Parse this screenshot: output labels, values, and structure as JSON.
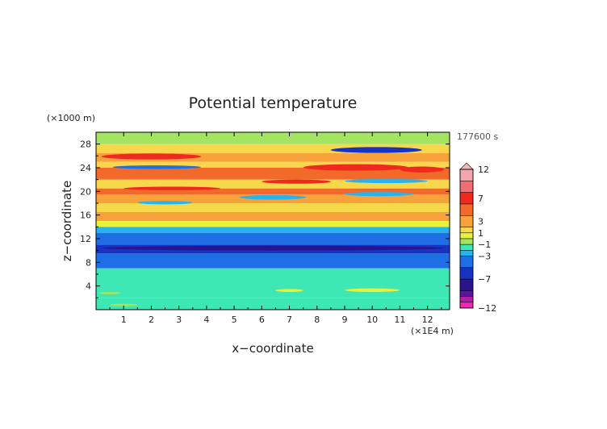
{
  "chart_data": {
    "type": "heatmap",
    "title": "Potential temperature",
    "xlabel": "x−coordinate",
    "ylabel": "z−coordinate",
    "x_unit": "(×1E4 m)",
    "y_unit": "(×1000 m)",
    "time_label": "177600 s",
    "xlim": [
      0,
      12.8
    ],
    "ylim": [
      0,
      30
    ],
    "x_ticks": [
      "1",
      "2",
      "3",
      "4",
      "5",
      "6",
      "7",
      "8",
      "9",
      "10",
      "11",
      "12"
    ],
    "y_ticks": [
      "4",
      "8",
      "12",
      "16",
      "20",
      "24",
      "28"
    ],
    "colorbar_labels": [
      "12",
      "7",
      "3",
      "1",
      "−1",
      "−3",
      "−7",
      "−12"
    ],
    "colorbar_levels": [
      {
        "lo": 10,
        "hi": 12,
        "color": "#f4a6ac"
      },
      {
        "lo": 8,
        "hi": 10,
        "color": "#f06e72"
      },
      {
        "lo": 6,
        "hi": 8,
        "color": "#ee2a1f"
      },
      {
        "lo": 4,
        "hi": 6,
        "color": "#f26a2a"
      },
      {
        "lo": 2,
        "hi": 4,
        "color": "#f7a23a"
      },
      {
        "lo": 1,
        "hi": 2,
        "color": "#f7d84a"
      },
      {
        "lo": 0,
        "hi": 1,
        "color": "#e7f23c"
      },
      {
        "lo": -1,
        "hi": 0,
        "color": "#a4e462"
      },
      {
        "lo": -2,
        "hi": -1,
        "color": "#3ee8b4"
      },
      {
        "lo": -3,
        "hi": -2,
        "color": "#27b4ee"
      },
      {
        "lo": -5,
        "hi": -3,
        "color": "#1e6ee6"
      },
      {
        "lo": -7,
        "hi": -5,
        "color": "#1832c2"
      },
      {
        "lo": -9,
        "hi": -7,
        "color": "#2a148e"
      },
      {
        "lo": -10,
        "hi": -9,
        "color": "#5a14a0"
      },
      {
        "lo": -11,
        "hi": -10,
        "color": "#b21ea4"
      },
      {
        "lo": -12,
        "hi": -11,
        "color": "#ef2ab2"
      }
    ],
    "layers": [
      {
        "z": [
          0,
          2
        ],
        "value": -1.5,
        "color": "#3ee8b4"
      },
      {
        "z": [
          2,
          7
        ],
        "value": -1.5,
        "color": "#3ee8b4"
      },
      {
        "z": [
          7,
          9.5
        ],
        "value": -4,
        "color": "#1e6ee6"
      },
      {
        "z": [
          9.5,
          11
        ],
        "value": -6,
        "color": "#1832c2"
      },
      {
        "z": [
          11,
          13
        ],
        "value": -4,
        "color": "#1e6ee6"
      },
      {
        "z": [
          13,
          14
        ],
        "value": -2.5,
        "color": "#27b4ee"
      },
      {
        "z": [
          14,
          15
        ],
        "value": 0.5,
        "color": "#e7f23c"
      },
      {
        "z": [
          15,
          16.5
        ],
        "value": 3,
        "color": "#f7a23a"
      },
      {
        "z": [
          16.5,
          18
        ],
        "value": 1.5,
        "color": "#f7d84a"
      },
      {
        "z": [
          18,
          19.5
        ],
        "value": 3,
        "color": "#f7a23a"
      },
      {
        "z": [
          19.5,
          20.5
        ],
        "value": 5,
        "color": "#f26a2a"
      },
      {
        "z": [
          20.5,
          22
        ],
        "value": 1.5,
        "color": "#f7d84a"
      },
      {
        "z": [
          22,
          24
        ],
        "value": 5,
        "color": "#f26a2a"
      },
      {
        "z": [
          24,
          25
        ],
        "value": 1.5,
        "color": "#f7d84a"
      },
      {
        "z": [
          25,
          26.5
        ],
        "value": 3,
        "color": "#f7a23a"
      },
      {
        "z": [
          26.5,
          28
        ],
        "value": 1.5,
        "color": "#f7d84a"
      },
      {
        "z": [
          28,
          30
        ],
        "value": -0.5,
        "color": "#a4e462"
      }
    ],
    "features": [
      {
        "x": [
          0.2,
          3.8
        ],
        "z": [
          25.4,
          26.4
        ],
        "color": "#ee2a1f"
      },
      {
        "x": [
          7.5,
          11.3
        ],
        "z": [
          23.5,
          24.6
        ],
        "color": "#ee2a1f"
      },
      {
        "x": [
          11.0,
          12.6
        ],
        "z": [
          23.2,
          24.2
        ],
        "color": "#ee2a1f"
      },
      {
        "x": [
          0.6,
          3.8
        ],
        "z": [
          23.8,
          24.4
        ],
        "color": "#1e6ee6"
      },
      {
        "x": [
          8.5,
          11.8
        ],
        "z": [
          26.5,
          27.5
        ],
        "color": "#1832c2"
      },
      {
        "x": [
          0.2,
          12.6
        ],
        "z": [
          10.0,
          10.8
        ],
        "color": "#2a148e"
      },
      {
        "x": [
          9.0,
          11.5
        ],
        "z": [
          19.2,
          19.9
        ],
        "color": "#27b4ee"
      },
      {
        "x": [
          5.2,
          7.6
        ],
        "z": [
          18.6,
          19.4
        ],
        "color": "#27b4ee"
      },
      {
        "x": [
          1.5,
          3.5
        ],
        "z": [
          17.8,
          18.4
        ],
        "color": "#27b4ee"
      },
      {
        "x": [
          6.0,
          8.5
        ],
        "z": [
          21.3,
          22.0
        ],
        "color": "#ee2a1f"
      },
      {
        "x": [
          9.0,
          12.0
        ],
        "z": [
          21.4,
          22.1
        ],
        "color": "#27b4ee"
      },
      {
        "x": [
          1.0,
          4.5
        ],
        "z": [
          20.2,
          20.8
        ],
        "color": "#ee2a1f"
      },
      {
        "x": [
          6.5,
          7.5
        ],
        "z": [
          3.0,
          3.5
        ],
        "color": "#e7f23c"
      },
      {
        "x": [
          9.0,
          11.0
        ],
        "z": [
          3.0,
          3.6
        ],
        "color": "#e7f23c"
      },
      {
        "x": [
          0.1,
          0.9
        ],
        "z": [
          2.6,
          3.0
        ],
        "color": "#a4e462"
      },
      {
        "x": [
          0.5,
          1.5
        ],
        "z": [
          0.6,
          1.0
        ],
        "color": "#a4e462"
      }
    ]
  }
}
